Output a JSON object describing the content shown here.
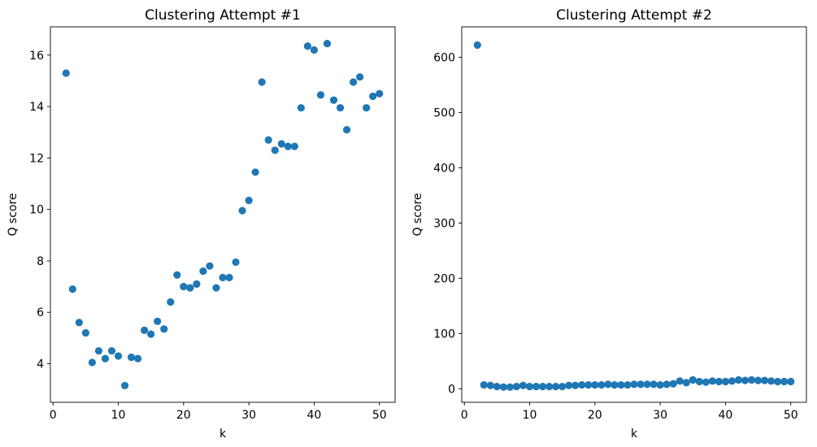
{
  "chart_data": [
    {
      "type": "scatter",
      "title": "Clustering Attempt #1",
      "xlabel": "k",
      "ylabel": "Q score",
      "xlim": [
        -0.4,
        52.4
      ],
      "ylim": [
        2.5,
        17.1
      ],
      "xticks": [
        0,
        10,
        20,
        30,
        40,
        50
      ],
      "yticks": [
        4,
        6,
        8,
        10,
        12,
        14,
        16
      ],
      "color": "#1f77b4",
      "x": [
        2,
        3,
        4,
        5,
        6,
        7,
        8,
        9,
        10,
        11,
        12,
        13,
        14,
        15,
        16,
        17,
        18,
        19,
        20,
        21,
        22,
        23,
        24,
        25,
        26,
        27,
        28,
        29,
        30,
        31,
        32,
        33,
        34,
        35,
        36,
        37,
        38,
        39,
        40,
        41,
        42,
        43,
        44,
        45,
        46,
        47,
        48,
        49,
        50
      ],
      "y": [
        15.3,
        6.9,
        5.6,
        5.2,
        4.05,
        4.5,
        4.2,
        4.5,
        4.3,
        3.15,
        4.25,
        4.2,
        5.3,
        5.15,
        5.65,
        5.35,
        6.4,
        7.45,
        7.0,
        6.95,
        7.1,
        7.6,
        7.8,
        6.95,
        7.35,
        7.35,
        7.95,
        9.95,
        10.35,
        11.45,
        14.95,
        12.7,
        12.3,
        12.55,
        12.45,
        12.45,
        13.95,
        16.35,
        16.2,
        14.45,
        16.45,
        14.25,
        13.95,
        13.1,
        14.95,
        15.15,
        13.95,
        14.4,
        14.5
      ]
    },
    {
      "type": "scatter",
      "title": "Clustering Attempt #2",
      "xlabel": "k",
      "ylabel": "Q score",
      "xlim": [
        -0.4,
        52.4
      ],
      "ylim": [
        -24.5,
        655
      ],
      "xticks": [
        0,
        10,
        20,
        30,
        40,
        50
      ],
      "yticks": [
        0,
        100,
        200,
        300,
        400,
        500,
        600
      ],
      "color": "#1f77b4",
      "x": [
        2,
        3,
        4,
        5,
        6,
        7,
        8,
        9,
        10,
        11,
        12,
        13,
        14,
        15,
        16,
        17,
        18,
        19,
        20,
        21,
        22,
        23,
        24,
        25,
        26,
        27,
        28,
        29,
        30,
        31,
        32,
        33,
        34,
        35,
        36,
        37,
        38,
        39,
        40,
        41,
        42,
        43,
        44,
        45,
        46,
        47,
        48,
        49,
        50
      ],
      "y": [
        622,
        7,
        6,
        4,
        3,
        3,
        4,
        6,
        4,
        4,
        4,
        4,
        4,
        4,
        6,
        6,
        7,
        7,
        7,
        7,
        8,
        7,
        7,
        7,
        8,
        8,
        8,
        8,
        7,
        8,
        9,
        14,
        11,
        16,
        13,
        12,
        14,
        13,
        13,
        14,
        16,
        15,
        16,
        15,
        15,
        14,
        13,
        13,
        13
      ]
    }
  ]
}
